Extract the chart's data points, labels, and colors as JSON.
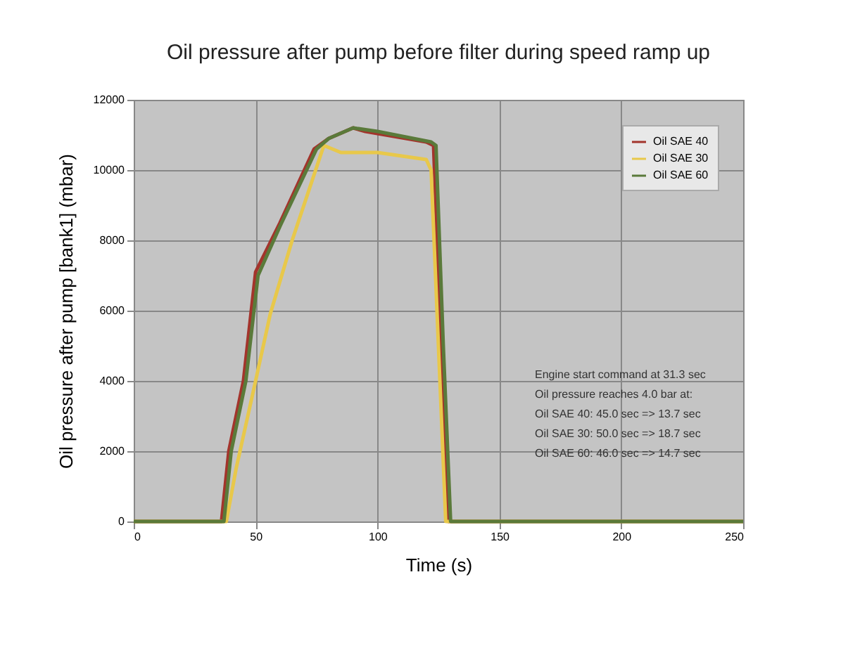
{
  "chart_data": {
    "type": "line",
    "title": "Oil pressure after pump before filter during speed ramp up",
    "xlabel": "Time (s)",
    "ylabel": "Oil pressure after pump [bank1] (mbar)",
    "xlim": [
      0,
      250
    ],
    "xticks": [
      0,
      50,
      100,
      150,
      200,
      250
    ],
    "ylim": [
      0,
      12000
    ],
    "yticks": [
      0,
      2000,
      4000,
      6000,
      8000,
      10000,
      12000
    ],
    "grid": true,
    "legend": "top right",
    "marker": "none",
    "line_style": "solid",
    "annotations": [
      "Engine start command at 31.3 sec",
      "Oil pressure reaches 4.0 bar at:",
      "Oil SAE 40: 45.0 sec => 13.7 sec",
      "Oil SAE 30: 50.0 sec => 18.7 sec",
      "Oil SAE 60: 46.0 sec => 14.7 sec"
    ],
    "series": [
      {
        "name": "Oil SAE 40",
        "color": "#a3342c",
        "x": [
          0,
          36,
          39,
          45,
          50,
          60,
          74,
          80,
          90,
          95,
          120,
          123,
          126,
          129,
          250
        ],
        "values": [
          0,
          0,
          2000,
          4000,
          7100,
          8500,
          10600,
          10900,
          11200,
          11100,
          10800,
          10700,
          5000,
          0,
          0
        ]
      },
      {
        "name": "Oil SAE 30",
        "color": "#e8c84a",
        "x": [
          0,
          38,
          42,
          50,
          56,
          65,
          78,
          85,
          100,
          120,
          122,
          125,
          128,
          250
        ],
        "values": [
          0,
          0,
          1500,
          4000,
          5900,
          8000,
          10700,
          10500,
          10500,
          10300,
          10000,
          5000,
          0,
          0
        ]
      },
      {
        "name": "Oil SAE 60",
        "color": "#5a7a3a",
        "x": [
          0,
          37,
          40,
          46,
          51,
          60,
          75,
          80,
          90,
          100,
          122,
          124,
          127,
          130,
          250
        ],
        "values": [
          0,
          0,
          2000,
          4000,
          7000,
          8400,
          10600,
          10900,
          11200,
          11100,
          10800,
          10700,
          5000,
          0,
          0
        ]
      }
    ]
  }
}
